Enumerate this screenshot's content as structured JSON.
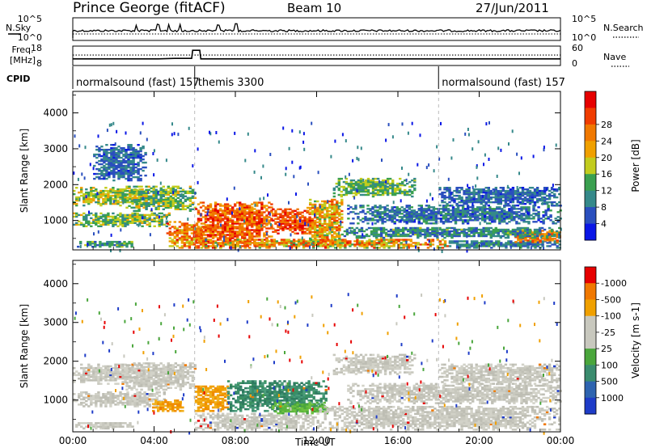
{
  "header": {
    "station": "Prince George (fitACF)",
    "beam": "Beam 10",
    "date": "27/Jun/2011"
  },
  "labels": {
    "n_sky": "N.Sky",
    "n_search": "N.Search",
    "freq": "Freq.",
    "freq_unit": "[MHz]",
    "nave": "Nave",
    "cpid": "CPID",
    "time_axis": "Time UT",
    "range_axis": "Slant Range [km]"
  },
  "chart_data": [
    {
      "id": "noise",
      "type": "line",
      "left_ticks": [
        "10^5",
        "10^0"
      ],
      "right_ticks": [
        "10^5",
        "10^0"
      ],
      "series": [
        {
          "name": "N.Sky",
          "style": "solid"
        },
        {
          "name": "N.Search",
          "style": "dotted"
        }
      ]
    },
    {
      "id": "freq_nave",
      "type": "line",
      "left_ticks": [
        "18",
        "8"
      ],
      "right_ticks": [
        "60",
        "0"
      ],
      "ylim_left": [
        8,
        18
      ],
      "ylim_right": [
        0,
        60
      ],
      "series": [
        {
          "name": "Freq.",
          "style": "solid",
          "points": [
            [
              0,
              10.9
            ],
            [
              4.2,
              10.9
            ],
            [
              5.0,
              11.2
            ],
            [
              5.85,
              11.2
            ],
            [
              5.9,
              16.8
            ],
            [
              6.25,
              16.8
            ],
            [
              6.3,
              10.9
            ],
            [
              18.0,
              10.9
            ],
            [
              24,
              10.9
            ]
          ]
        },
        {
          "name": "Nave",
          "style": "dotted",
          "points": [
            [
              0,
              33
            ],
            [
              24,
              33
            ]
          ]
        }
      ]
    },
    {
      "id": "cpid",
      "type": "table",
      "segments": [
        {
          "label": "normalsound (fast) 157",
          "start": 0,
          "end": 6
        },
        {
          "label": "themis 3300",
          "start": 6,
          "end": 18
        },
        {
          "label": "normalsound (fast) 157",
          "start": 18,
          "end": 24
        }
      ]
    },
    {
      "id": "power",
      "type": "heatmap",
      "title": "",
      "xlabel": "",
      "ylabel": "Slant Range [km]",
      "x_ticks": [
        "00:00",
        "04:00",
        "08:00",
        "12:00",
        "16:00",
        "20:00",
        "00:00"
      ],
      "xlim": [
        0,
        24
      ],
      "ylim": [
        180,
        4600
      ],
      "y_ticks": [
        1000,
        2000,
        3000,
        4000
      ],
      "colorbar": {
        "label": "Power [dB]",
        "ticks": [
          "4",
          "8",
          "12",
          "16",
          "20",
          "24",
          "28"
        ],
        "colors": [
          "#0a16e6",
          "#2a4fbe",
          "#35898a",
          "#3aa050",
          "#c2cc1e",
          "#f0a000",
          "#f07800",
          "#f03c00",
          "#e60000"
        ]
      },
      "regions": [
        {
          "t0": 0.0,
          "t1": 3.6,
          "r0": 1400,
          "r1": 1900,
          "lvl": [
            0.3,
            0.65
          ]
        },
        {
          "t0": 2.6,
          "t1": 6.0,
          "r0": 1250,
          "r1": 1950,
          "lvl": [
            0.25,
            0.6
          ]
        },
        {
          "t0": 0.0,
          "t1": 4.8,
          "r0": 820,
          "r1": 1200,
          "lvl": [
            0.2,
            0.6
          ]
        },
        {
          "t0": 0.2,
          "t1": 3.2,
          "r0": 250,
          "r1": 420,
          "lvl": [
            0.1,
            0.45
          ]
        },
        {
          "t0": 4.6,
          "t1": 6.5,
          "r0": 220,
          "r1": 950,
          "lvl": [
            0.45,
            0.95
          ]
        },
        {
          "t0": 6.0,
          "t1": 9.8,
          "r0": 220,
          "r1": 1500,
          "lvl": [
            0.6,
            1.0
          ]
        },
        {
          "t0": 9.8,
          "t1": 11.8,
          "r0": 620,
          "r1": 1300,
          "lvl": [
            0.7,
            1.0
          ]
        },
        {
          "t0": 11.5,
          "t1": 13.2,
          "r0": 300,
          "r1": 1600,
          "lvl": [
            0.4,
            0.85
          ]
        },
        {
          "t0": 6.5,
          "t1": 18.5,
          "r0": 220,
          "r1": 470,
          "lvl": [
            0.35,
            0.95
          ]
        },
        {
          "t0": 18.5,
          "t1": 24.0,
          "r0": 220,
          "r1": 430,
          "lvl": [
            0.1,
            0.4
          ]
        },
        {
          "t0": 21.5,
          "t1": 24.0,
          "r0": 380,
          "r1": 720,
          "lvl": [
            0.6,
            0.92
          ]
        },
        {
          "t0": 12.8,
          "t1": 16.8,
          "r0": 1650,
          "r1": 2150,
          "lvl": [
            0.2,
            0.55
          ]
        },
        {
          "t0": 13.5,
          "t1": 24.0,
          "r0": 900,
          "r1": 1400,
          "lvl": [
            0.05,
            0.35
          ]
        },
        {
          "t0": 13.2,
          "t1": 24.0,
          "r0": 500,
          "r1": 800,
          "lvl": [
            0.1,
            0.45
          ]
        },
        {
          "t0": 18.0,
          "t1": 24.0,
          "r0": 1400,
          "r1": 1900,
          "lvl": [
            0.05,
            0.3
          ]
        },
        {
          "t0": 1.0,
          "t1": 3.6,
          "r0": 2100,
          "r1": 3100,
          "lvl": [
            0.05,
            0.3
          ]
        }
      ]
    },
    {
      "id": "velocity",
      "type": "heatmap",
      "title": "",
      "xlabel": "Time UT",
      "ylabel": "Slant Range [km]",
      "x_ticks": [
        "00:00",
        "04:00",
        "08:00",
        "12:00",
        "16:00",
        "20:00",
        "00:00"
      ],
      "xlim": [
        0,
        24
      ],
      "ylim": [
        180,
        4600
      ],
      "y_ticks": [
        1000,
        2000,
        3000,
        4000
      ],
      "colorbar": {
        "label": "Velocity [m s-1]",
        "ticks": [
          "1000",
          "500",
          "100",
          "25",
          "-25",
          "-100",
          "-500",
          "-1000"
        ],
        "colors": [
          "#1e3cc8",
          "#2e64b0",
          "#3a8c6e",
          "#4aa63c",
          "#c8c8be",
          "#c8c8be",
          "#f0a000",
          "#f07800",
          "#e60000"
        ]
      },
      "regions": [
        {
          "t0": 0.0,
          "t1": 3.6,
          "r0": 1400,
          "r1": 1900,
          "c": "gray"
        },
        {
          "t0": 2.6,
          "t1": 6.0,
          "r0": 1250,
          "r1": 1950,
          "c": "gray"
        },
        {
          "t0": 0.0,
          "t1": 4.5,
          "r0": 820,
          "r1": 1200,
          "c": "gray"
        },
        {
          "t0": 3.9,
          "t1": 5.4,
          "r0": 700,
          "r1": 1000,
          "c": "orange"
        },
        {
          "t0": 6.0,
          "t1": 7.6,
          "r0": 700,
          "r1": 1350,
          "c": "orange"
        },
        {
          "t0": 7.6,
          "t1": 12.5,
          "r0": 700,
          "r1": 1500,
          "c": "teal"
        },
        {
          "t0": 9.8,
          "t1": 12.5,
          "r0": 640,
          "r1": 920,
          "c": "lime"
        },
        {
          "t0": 6.0,
          "t1": 12.0,
          "r0": 220,
          "r1": 650,
          "c": "gray"
        },
        {
          "t0": 12.0,
          "t1": 24.0,
          "r0": 220,
          "r1": 850,
          "c": "gray"
        },
        {
          "t0": 12.8,
          "t1": 16.8,
          "r0": 1650,
          "r1": 2150,
          "c": "gray"
        },
        {
          "t0": 13.5,
          "t1": 24.0,
          "r0": 900,
          "r1": 1400,
          "c": "gray"
        },
        {
          "t0": 18.0,
          "t1": 24.0,
          "r0": 1400,
          "r1": 1900,
          "c": "gray"
        },
        {
          "t0": 0.0,
          "t1": 3.0,
          "r0": 250,
          "r1": 420,
          "c": "gray"
        }
      ]
    }
  ]
}
